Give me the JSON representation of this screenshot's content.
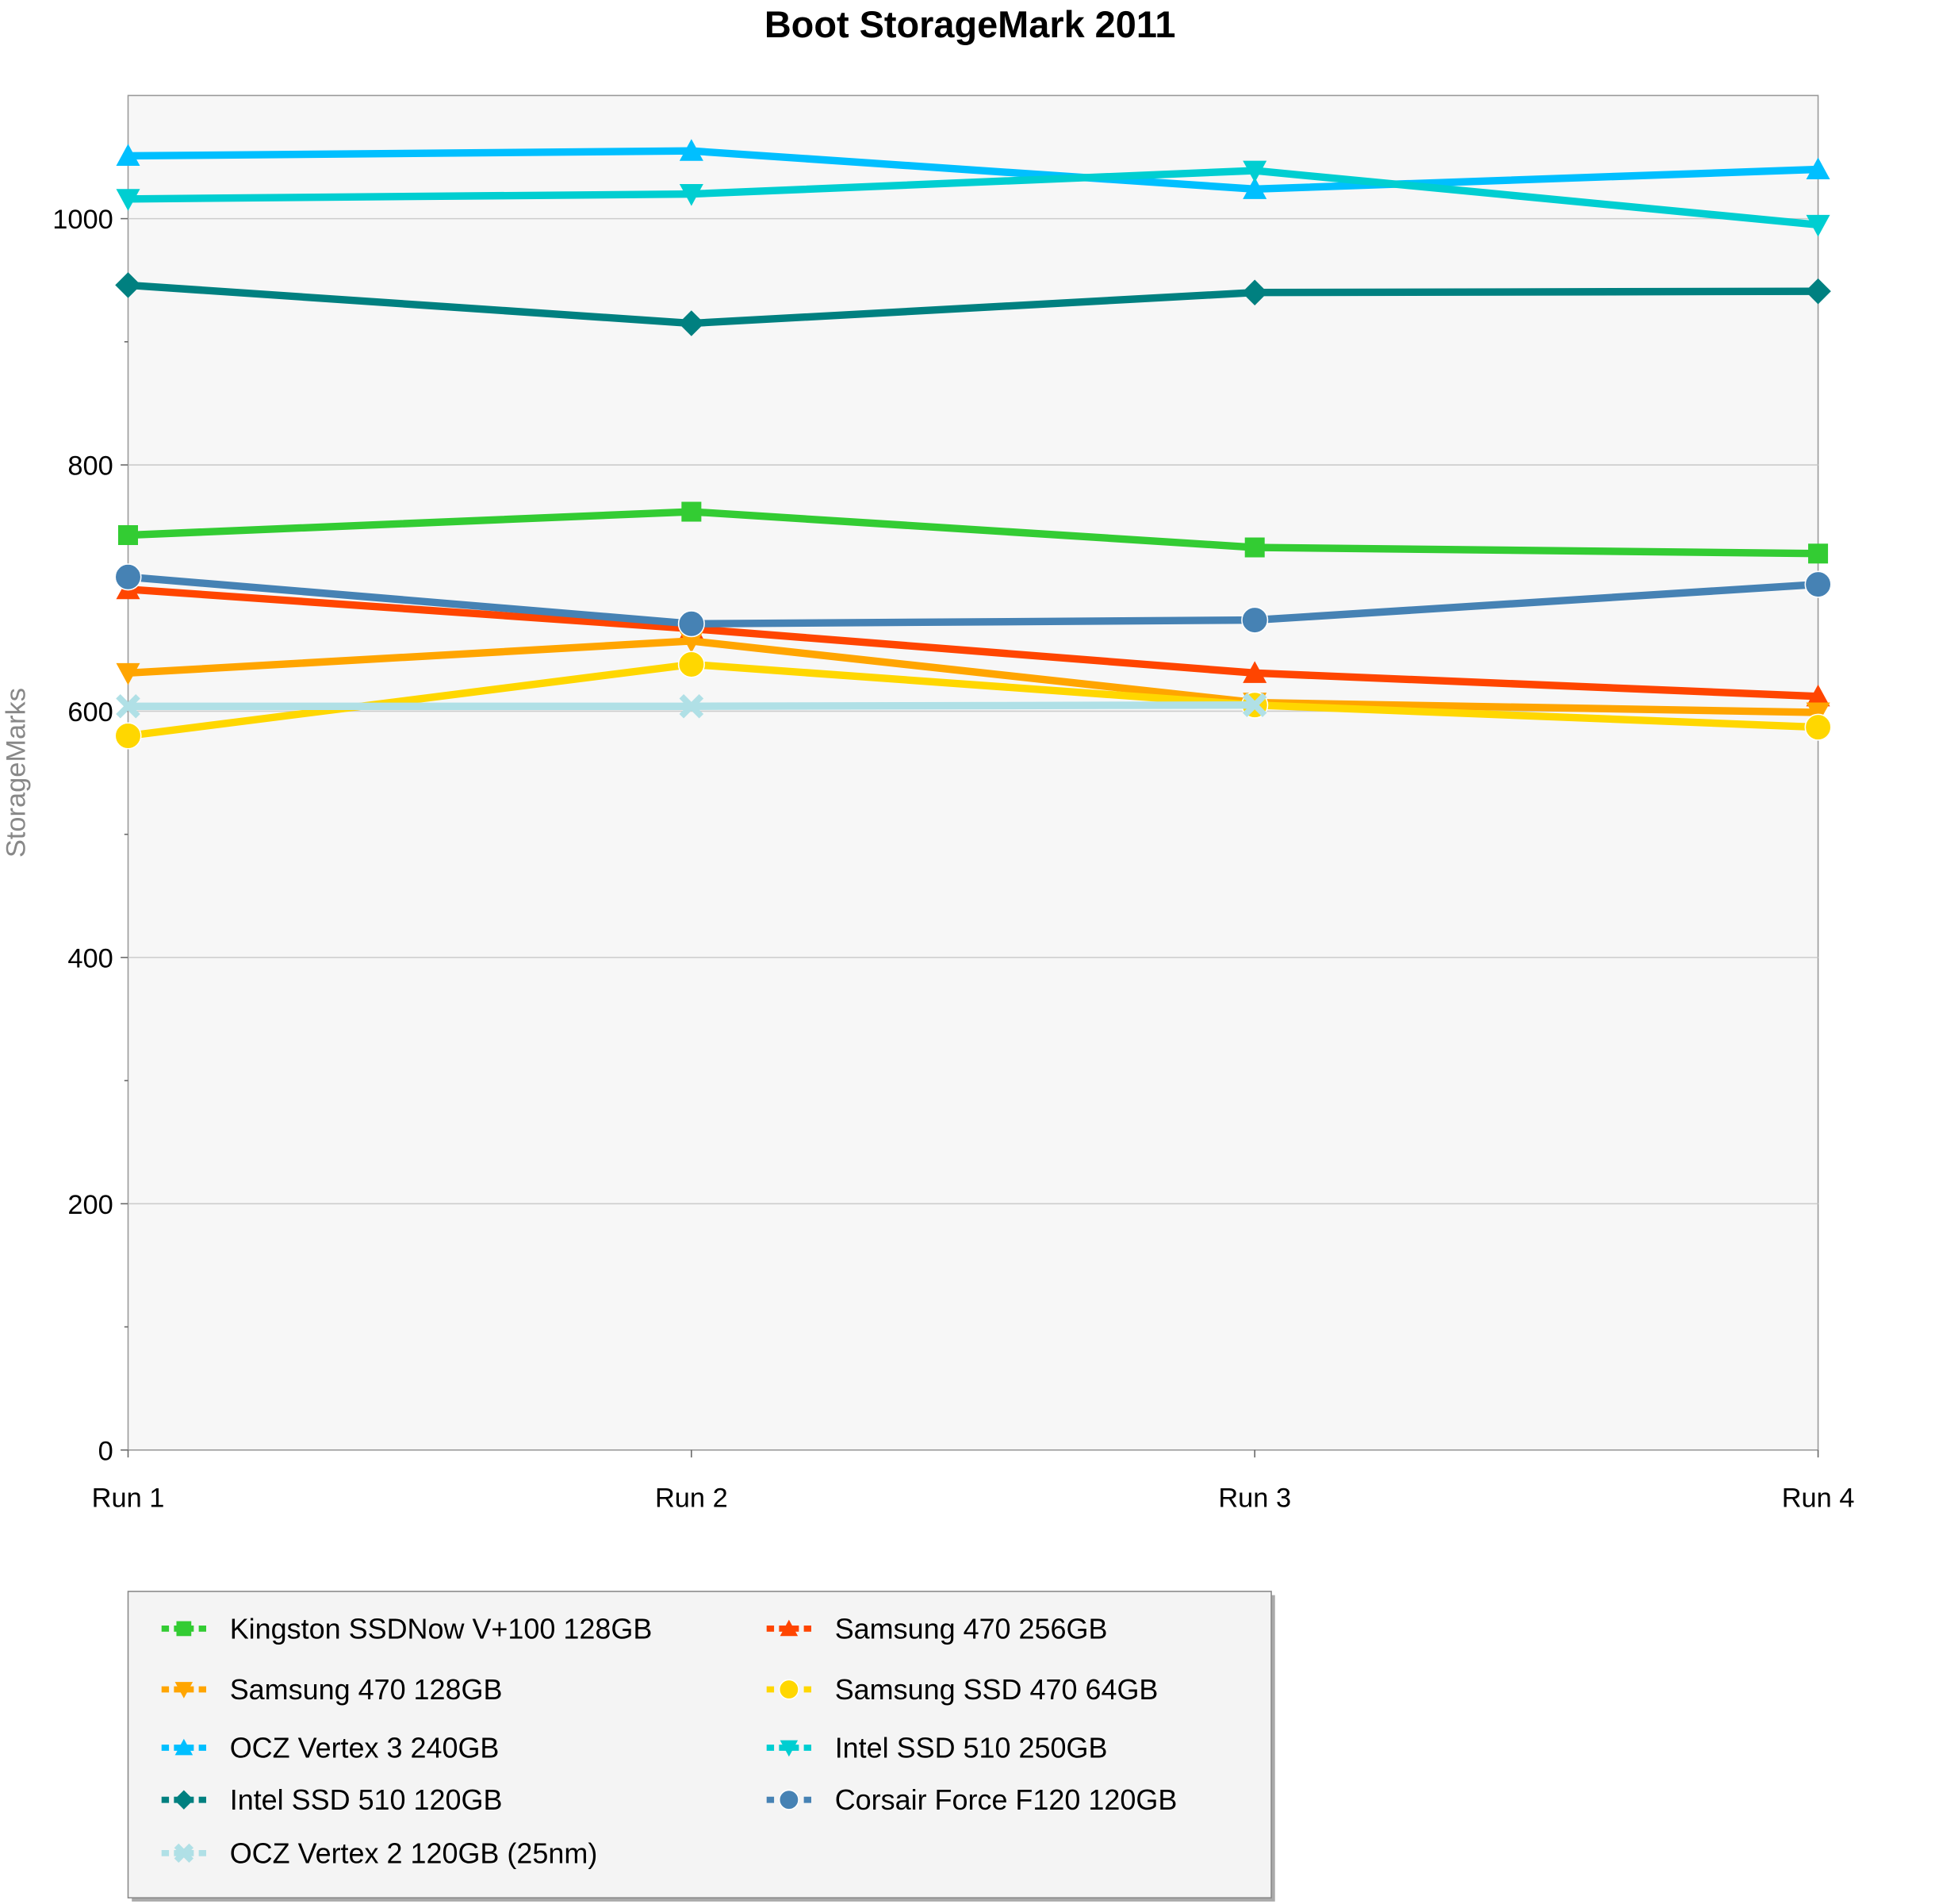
{
  "chart_data": {
    "type": "line",
    "title": "Boot StorageMark 2011",
    "xlabel": "",
    "ylabel": "StorageMarks",
    "ylim": [
      0,
      1100
    ],
    "yticks": [
      0,
      200,
      400,
      600,
      800,
      1000
    ],
    "categories": [
      "Run 1",
      "Run 2",
      "Run 3",
      "Run 4"
    ],
    "grid": true,
    "legend_position": "bottom-left",
    "series": [
      {
        "name": "Kingston SSDNow V+100 128GB",
        "color": "#33cc33",
        "marker": "square",
        "values": [
          743,
          762,
          733,
          728
        ]
      },
      {
        "name": "Samsung 470 256GB",
        "color": "#ff4500",
        "marker": "triangle-up",
        "values": [
          699,
          667,
          631,
          612
        ]
      },
      {
        "name": "Samsung 470 128GB",
        "color": "#ffa500",
        "marker": "triangle-down",
        "values": [
          631,
          657,
          607,
          599
        ]
      },
      {
        "name": "Samsung SSD 470 64GB",
        "color": "#ffd700",
        "marker": "circle",
        "values": [
          580,
          638,
          605,
          587
        ]
      },
      {
        "name": "OCZ Vertex 3 240GB",
        "color": "#00bfff",
        "marker": "triangle-up",
        "values": [
          1051,
          1055,
          1024,
          1040
        ]
      },
      {
        "name": "Intel SSD 510 250GB",
        "color": "#00ced1",
        "marker": "triangle-down",
        "values": [
          1016,
          1020,
          1039,
          995
        ]
      },
      {
        "name": "Intel SSD 510 120GB",
        "color": "#008080",
        "marker": "diamond",
        "values": [
          946,
          915,
          940,
          941
        ]
      },
      {
        "name": "Corsair Force F120 120GB",
        "color": "#4682b4",
        "marker": "circle",
        "values": [
          709,
          671,
          674,
          703
        ]
      },
      {
        "name": "OCZ Vertex 2 120GB (25nm)",
        "color": "#b0e0e6",
        "marker": "x",
        "values": [
          604,
          604,
          605,
          null
        ]
      }
    ]
  }
}
